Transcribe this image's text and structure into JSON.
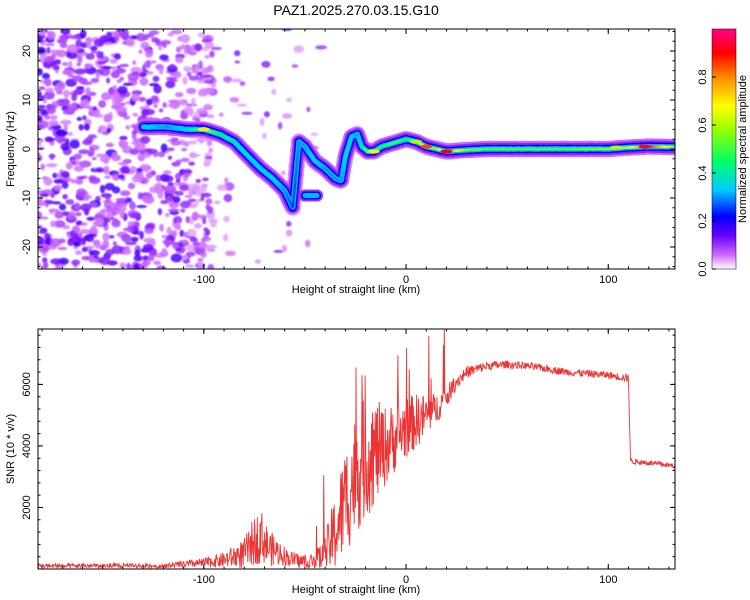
{
  "title": "PAZ1.2025.270.03.15.G10",
  "chart_data": [
    {
      "type": "heatmap",
      "name": "spectrogram",
      "xlabel": "Height of straight line (km)",
      "ylabel": "Frequency (Hz)",
      "xlim": [
        -182,
        133
      ],
      "ylim": [
        -24.5,
        24.5
      ],
      "xticks": [
        -100,
        0,
        100
      ],
      "yticks": [
        20,
        10,
        0,
        -10,
        -20
      ],
      "colorbar_label": "Normalized spectral amplitude",
      "colorbar_range": [
        0.0,
        1.0
      ],
      "colorbar_ticks": [
        0.0,
        0.2,
        0.4,
        0.6,
        0.8
      ],
      "ridge": {
        "x": [
          -130,
          -118,
          -108,
          -100,
          -92,
          -85,
          -78,
          -72,
          -66,
          -60,
          -56,
          -53,
          -50,
          -45,
          -40,
          -35,
          -32,
          -30,
          -27,
          -24,
          -22,
          -19,
          -16,
          -12,
          -8,
          -4,
          0,
          5,
          10,
          15,
          20,
          30,
          40,
          60,
          80,
          100,
          110,
          120,
          133
        ],
        "y": [
          4.5,
          4.5,
          4.0,
          4.0,
          3.0,
          1.5,
          -1.5,
          -4.0,
          -6.0,
          -8.5,
          -12.0,
          1.5,
          0.5,
          -2.5,
          -4.0,
          -6.0,
          -6.5,
          -1.5,
          2.5,
          3.0,
          0.5,
          -0.5,
          -0.5,
          0.5,
          1.0,
          1.5,
          2.0,
          1.5,
          0.5,
          0.0,
          -0.5,
          -0.2,
          0.0,
          0.0,
          0.0,
          0.0,
          0.3,
          0.5,
          0.4
        ],
        "amplitude": [
          0.35,
          0.3,
          0.35,
          0.6,
          0.45,
          0.4,
          0.35,
          0.35,
          0.35,
          0.3,
          0.25,
          0.3,
          0.3,
          0.35,
          0.3,
          0.3,
          0.3,
          0.35,
          0.35,
          0.3,
          0.4,
          0.55,
          0.6,
          0.45,
          0.5,
          0.5,
          0.45,
          0.55,
          0.7,
          0.55,
          0.85,
          0.55,
          0.5,
          0.5,
          0.5,
          0.55,
          0.6,
          0.9,
          0.55
        ]
      },
      "secondary_blob": {
        "x": [
          -50,
          -44
        ],
        "y": [
          -9.5,
          -9.5
        ],
        "amplitude": 0.3
      }
    },
    {
      "type": "line",
      "name": "snr",
      "xlabel": "Height of straight line (km)",
      "ylabel": "SNR (10 * v/v)",
      "xlim": [
        -182,
        133
      ],
      "ylim": [
        0,
        7800
      ],
      "xticks": [
        -100,
        0,
        100
      ],
      "yticks": [
        2000,
        4000,
        6000
      ],
      "color": "#ee3333",
      "envelope": {
        "x": [
          -182,
          -120,
          -100,
          -90,
          -80,
          -75,
          -72,
          -68,
          -62,
          -58,
          -52,
          -45,
          -40,
          -35,
          -30,
          -25,
          -20,
          -15,
          -10,
          -5,
          0,
          5,
          10,
          15,
          20,
          25,
          30,
          40,
          50,
          60,
          70,
          80,
          90,
          100,
          110,
          111,
          120,
          133
        ],
        "y": [
          100,
          100,
          200,
          300,
          500,
          900,
          1100,
          700,
          500,
          350,
          250,
          250,
          500,
          1200,
          2200,
          3100,
          3600,
          3800,
          4000,
          4300,
          4600,
          4800,
          5000,
          5200,
          5600,
          6100,
          6400,
          6600,
          6650,
          6600,
          6500,
          6400,
          6350,
          6300,
          6200,
          3500,
          3450,
          3350
        ],
        "noise": [
          80,
          80,
          150,
          250,
          500,
          800,
          900,
          600,
          400,
          250,
          250,
          300,
          600,
          1300,
          1800,
          2000,
          2000,
          1700,
          1300,
          1100,
          1000,
          900,
          700,
          500,
          350,
          250,
          200,
          150,
          130,
          120,
          120,
          120,
          120,
          120,
          130,
          90,
          90,
          90
        ]
      }
    }
  ]
}
